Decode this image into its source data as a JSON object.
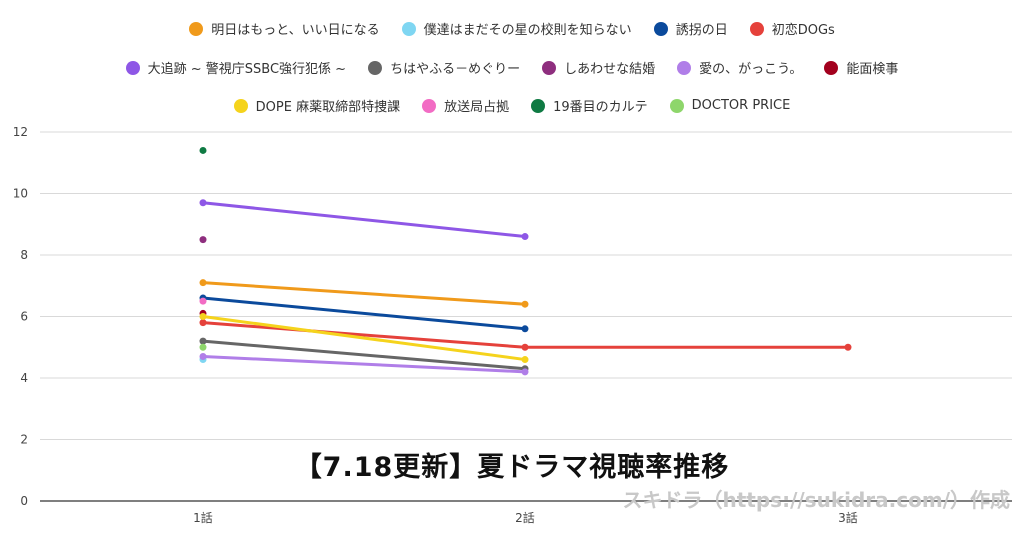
{
  "chart_data": {
    "type": "line",
    "title": "【7.18更新】夏ドラマ視聴率推移",
    "xlabel": "",
    "ylabel": "",
    "categories": [
      "1話",
      "2話",
      "3話"
    ],
    "ylim": [
      0,
      12
    ],
    "yticks": [
      0,
      2,
      4,
      6,
      8,
      10,
      12
    ],
    "grid": true,
    "legend_position": "top",
    "series": [
      {
        "name": "明日はもっと、いい日になる",
        "color": "#f09a1b",
        "values": [
          7.1,
          6.4,
          null
        ]
      },
      {
        "name": "僕達はまだその星の校則を知らない",
        "color": "#7fd6f2",
        "values": [
          4.6,
          null,
          null
        ]
      },
      {
        "name": "誘拐の日",
        "color": "#0b4a9c",
        "values": [
          6.6,
          5.6,
          null
        ]
      },
      {
        "name": "初恋DOGs",
        "color": "#e5413b",
        "values": [
          5.8,
          5.0,
          5.0
        ]
      },
      {
        "name": "大追跡 ~ 警視庁SSBC強行犯係 ~",
        "color": "#8e57e6",
        "values": [
          9.7,
          8.6,
          null
        ]
      },
      {
        "name": "ちはやふる－めぐりー",
        "color": "#666666",
        "values": [
          5.2,
          4.3,
          null
        ]
      },
      {
        "name": "しあわせな結婚",
        "color": "#8e2e7e",
        "values": [
          8.5,
          null,
          null
        ]
      },
      {
        "name": "愛の、がっこう。",
        "color": "#b07ee8",
        "values": [
          4.7,
          4.2,
          null
        ]
      },
      {
        "name": "能面検事",
        "color": "#a3001e",
        "values": [
          6.1,
          null,
          null
        ]
      },
      {
        "name": "DOPE 麻薬取締部特捜課",
        "color": "#f5d31c",
        "values": [
          6.0,
          4.6,
          null
        ]
      },
      {
        "name": "放送局占拠",
        "color": "#f26cc4",
        "values": [
          6.5,
          null,
          null
        ]
      },
      {
        "name": "19番目のカルテ",
        "color": "#0f7a43",
        "values": [
          11.4,
          null,
          null
        ]
      },
      {
        "name": "DOCTOR PRICE",
        "color": "#8ed66b",
        "values": [
          5.0,
          null,
          null
        ]
      }
    ],
    "legend_rows": [
      [
        0,
        1,
        2,
        3
      ],
      [
        4,
        5,
        6,
        7,
        8
      ],
      [
        9,
        10,
        11,
        12
      ]
    ]
  },
  "watermark": "スキドラ（https://sukidra.com/）作成"
}
